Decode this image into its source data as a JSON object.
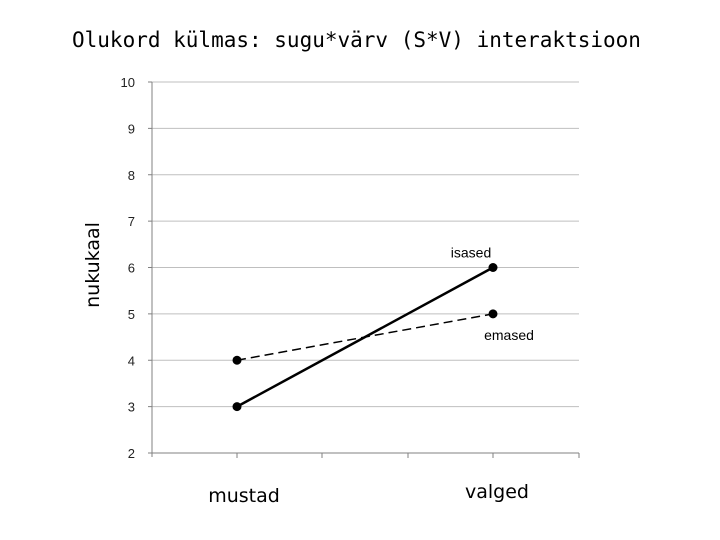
{
  "chart_data": {
    "type": "line",
    "title": "Olukord külmas: sugu*värv (S*V) interaktsioon",
    "ylabel": "nukukaal",
    "xlabel": "",
    "categories": [
      "mustad",
      "valged"
    ],
    "ylim": [
      2,
      10
    ],
    "yticks": [
      "2",
      "3",
      "4",
      "5",
      "6",
      "7",
      "8",
      "9",
      "10"
    ],
    "grid": true,
    "series": [
      {
        "name": "isased",
        "values": [
          3,
          6
        ],
        "style": "solid",
        "color": "#000000"
      },
      {
        "name": "emased",
        "values": [
          4,
          5
        ],
        "style": "dashed",
        "color": "#000000"
      }
    ],
    "colors": {
      "grid": "#bfbfbf",
      "axis": "#808080",
      "line": "#000000"
    }
  }
}
